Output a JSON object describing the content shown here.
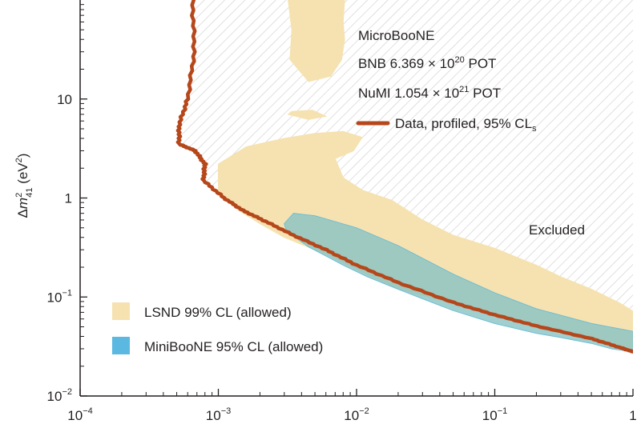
{
  "chart_data": {
    "type": "area",
    "title": "",
    "xlabel": "",
    "ylabel": "Δm²₄₁ (eV²)",
    "ylabel_parts": {
      "pre": "Δ",
      "m": "m",
      "sup": "2",
      "sub": "41",
      "unit": " (eV",
      "unit_sup": "2",
      "close": ")"
    },
    "x_scale": "log",
    "y_scale": "log",
    "xlim": [
      0.0001,
      1
    ],
    "ylim": [
      0.01,
      100
    ],
    "grid": false,
    "x_ticks": [
      {
        "value": 0.0001,
        "base": "10",
        "exp": "−4"
      },
      {
        "value": 0.001,
        "base": "10",
        "exp": "−3"
      },
      {
        "value": 0.01,
        "base": "10",
        "exp": "−2"
      },
      {
        "value": 0.1,
        "base": "10",
        "exp": "−1"
      },
      {
        "value": 1,
        "base": "1",
        "exp": ""
      }
    ],
    "y_ticks": [
      {
        "value": 0.01,
        "base": "10",
        "exp": "−2"
      },
      {
        "value": 0.1,
        "base": "10",
        "exp": "−1"
      },
      {
        "value": 1,
        "base": "1",
        "exp": ""
      },
      {
        "value": 10,
        "base": "10",
        "exp": ""
      }
    ],
    "annotations": {
      "experiment": "MicroBooNE",
      "bnb": {
        "pre": "BNB 6.369 × 10",
        "sup": "20",
        "post": " POT"
      },
      "numi": {
        "pre": "NuMI 1.054 × 10",
        "sup": "21",
        "post": " POT"
      },
      "excluded": "Excluded"
    },
    "legend": {
      "contour": {
        "pre": "Data, profiled, 95% CL",
        "sub": "s"
      },
      "lsnd": "LSND 99% CL (allowed)",
      "miniboone": "MiniBooNE 95% CL (allowed)"
    },
    "colors": {
      "contour": "#b5471b",
      "lsnd": "#f5e2b0",
      "miniboone": "#5bb8e0",
      "hatch": "#cfcfcf",
      "overlap": "#9cc8b8"
    },
    "series": [
      {
        "name": "Data, profiled, 95% CLs",
        "kind": "exclusion-contour",
        "points": [
          [
            0.00065,
            100
          ],
          [
            0.00067,
            30
          ],
          [
            0.0006,
            10
          ],
          [
            0.00052,
            5.5
          ],
          [
            0.00052,
            3.5
          ],
          [
            0.00068,
            3.0
          ],
          [
            0.0008,
            2.2
          ],
          [
            0.00078,
            1.5
          ],
          [
            0.0011,
            1.0
          ],
          [
            0.0015,
            0.75
          ],
          [
            0.0022,
            0.58
          ],
          [
            0.0035,
            0.42
          ],
          [
            0.006,
            0.3
          ],
          [
            0.01,
            0.21
          ],
          [
            0.02,
            0.14
          ],
          [
            0.05,
            0.088
          ],
          [
            0.1,
            0.066
          ],
          [
            0.2,
            0.051
          ],
          [
            0.5,
            0.038
          ],
          [
            0.8,
            0.031
          ],
          [
            1,
            0.028
          ]
        ]
      },
      {
        "name": "LSND 99% CL (allowed)",
        "kind": "allowed-region",
        "regions": [
          [
            [
              0.0032,
              100
            ],
            [
              0.0034,
              50
            ],
            [
              0.0033,
              25
            ],
            [
              0.0045,
              15
            ],
            [
              0.0065,
              17
            ],
            [
              0.0078,
              25
            ],
            [
              0.0082,
              40
            ],
            [
              0.008,
              60
            ],
            [
              0.0082,
              100
            ]
          ],
          [
            [
              0.0032,
              7.0
            ],
            [
              0.0045,
              6.2
            ],
            [
              0.006,
              6.7
            ],
            [
              0.0048,
              7.7
            ],
            [
              0.0034,
              7.5
            ]
          ],
          [
            [
              0.001,
              2.2
            ],
            [
              0.0016,
              3.3
            ],
            [
              0.003,
              4.0
            ],
            [
              0.005,
              4.5
            ],
            [
              0.008,
              4.7
            ],
            [
              0.011,
              4.1
            ],
            [
              0.0095,
              3.0
            ],
            [
              0.007,
              2.5
            ],
            [
              0.008,
              1.6
            ],
            [
              0.011,
              1.2
            ],
            [
              0.018,
              0.95
            ],
            [
              0.03,
              0.6
            ],
            [
              0.05,
              0.42
            ],
            [
              0.1,
              0.31
            ],
            [
              0.2,
              0.21
            ],
            [
              0.3,
              0.16
            ],
            [
              0.5,
              0.12
            ],
            [
              0.8,
              0.087
            ],
            [
              1,
              0.072
            ],
            [
              1,
              0.028
            ],
            [
              0.8,
              0.032
            ],
            [
              0.5,
              0.04
            ],
            [
              0.3,
              0.047
            ],
            [
              0.2,
              0.052
            ],
            [
              0.1,
              0.067
            ],
            [
              0.05,
              0.086
            ],
            [
              0.02,
              0.12
            ],
            [
              0.01,
              0.19
            ],
            [
              0.006,
              0.27
            ],
            [
              0.004,
              0.34
            ],
            [
              0.003,
              0.4
            ],
            [
              0.002,
              0.55
            ],
            [
              0.0014,
              0.75
            ],
            [
              0.001,
              1.1
            ]
          ]
        ]
      },
      {
        "name": "MiniBooNE 95% CL (allowed)",
        "kind": "allowed-region",
        "regions": [
          [
            [
              0.003,
              0.55
            ],
            [
              0.0035,
              0.7
            ],
            [
              0.005,
              0.66
            ],
            [
              0.01,
              0.5
            ],
            [
              0.02,
              0.33
            ],
            [
              0.05,
              0.17
            ],
            [
              0.1,
              0.11
            ],
            [
              0.2,
              0.076
            ],
            [
              0.5,
              0.054
            ],
            [
              1,
              0.045
            ],
            [
              1,
              0.028
            ],
            [
              0.7,
              0.03
            ],
            [
              0.5,
              0.034
            ],
            [
              0.3,
              0.039
            ],
            [
              0.2,
              0.043
            ],
            [
              0.1,
              0.054
            ],
            [
              0.05,
              0.073
            ],
            [
              0.03,
              0.096
            ],
            [
              0.02,
              0.12
            ],
            [
              0.012,
              0.16
            ],
            [
              0.008,
              0.21
            ],
            [
              0.006,
              0.26
            ],
            [
              0.0045,
              0.32
            ],
            [
              0.0036,
              0.4
            ],
            [
              0.0031,
              0.47
            ]
          ]
        ]
      }
    ]
  }
}
